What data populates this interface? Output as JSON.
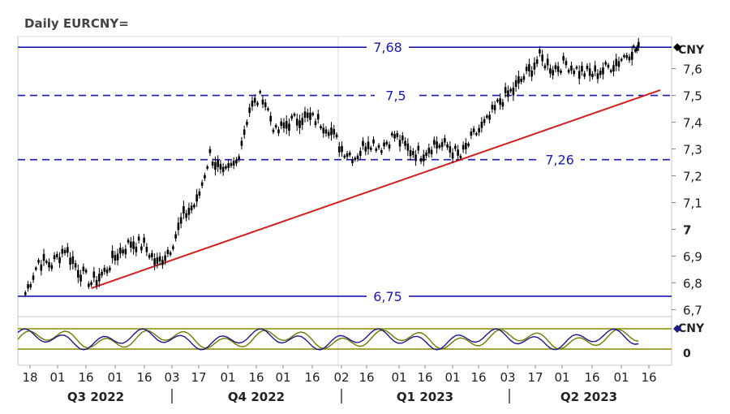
{
  "chart_data": [
    {
      "type": "line",
      "title": "Daily EURCNY=",
      "unit": "CNY",
      "ylim": [
        6.7,
        7.72
      ],
      "yticks": [
        "6,7",
        "6,8",
        "6,9",
        "7",
        "7,1",
        "7,2",
        "7,3",
        "7,4",
        "7,5",
        "7,6"
      ],
      "xticks": [
        "18",
        "01",
        "16",
        "01",
        "16",
        "03",
        "17",
        "01",
        "16",
        "01",
        "16",
        "02",
        "16",
        "01",
        "16",
        "01",
        "16",
        "03",
        "17",
        "01",
        "16",
        "01",
        "16"
      ],
      "quarters": [
        "Q3 2022",
        "Q4 2022",
        "Q1 2023",
        "Q2 2023"
      ],
      "x": [
        "2022-07-18",
        "2022-07-25",
        "2022-08-01",
        "2022-08-08",
        "2022-08-15",
        "2022-08-22",
        "2022-08-29",
        "2022-09-05",
        "2022-09-12",
        "2022-09-19",
        "2022-09-26",
        "2022-10-03",
        "2022-10-10",
        "2022-10-17",
        "2022-10-24",
        "2022-10-31",
        "2022-11-07",
        "2022-11-14",
        "2022-11-21",
        "2022-11-28",
        "2022-12-05",
        "2022-12-12",
        "2022-12-19",
        "2022-12-26",
        "2023-01-02",
        "2023-01-09",
        "2023-01-16",
        "2023-01-23",
        "2023-01-30",
        "2023-02-06",
        "2023-02-13",
        "2023-02-20",
        "2023-02-27",
        "2023-03-06",
        "2023-03-13",
        "2023-03-20",
        "2023-03-27",
        "2023-04-03",
        "2023-04-10",
        "2023-04-17",
        "2023-04-24",
        "2023-05-01",
        "2023-05-08",
        "2023-05-15",
        "2023-05-22",
        "2023-05-29",
        "2023-06-05"
      ],
      "series": [
        {
          "values": [
            6.76,
            6.88,
            6.87,
            6.93,
            6.85,
            6.8,
            6.84,
            6.91,
            6.95,
            6.94,
            6.87,
            6.93,
            7.05,
            7.1,
            7.28,
            7.2,
            7.25,
            7.45,
            7.5,
            7.36,
            7.4,
            7.42,
            7.41,
            7.38,
            7.3,
            7.27,
            7.33,
            7.31,
            7.35,
            7.3,
            7.28,
            7.32,
            7.31,
            7.27,
            7.35,
            7.4,
            7.48,
            7.52,
            7.58,
            7.64,
            7.6,
            7.62,
            7.59,
            7.58,
            7.6,
            7.63,
            7.67
          ],
          "color": "#000000"
        }
      ],
      "hlines": [
        {
          "value": 7.68,
          "label": "7,68",
          "style": "solid"
        },
        {
          "value": 7.5,
          "label": "7,5",
          "style": "dashed"
        },
        {
          "value": 7.26,
          "label": "7,26",
          "style": "dashed"
        },
        {
          "value": 6.75,
          "label": "6,75",
          "style": "solid"
        }
      ],
      "trendline": {
        "from": {
          "x": "2022-08-22",
          "y": 6.78
        },
        "to": {
          "x": "2023-06-20",
          "y": 7.52
        },
        "color": "#d22020"
      },
      "last_price_marker": "7,68",
      "grid": false
    },
    {
      "type": "line",
      "title": "",
      "unit": "CNY",
      "yticks": [
        "0"
      ],
      "note": "lower oscillator panel, two lines with two horizontal bands",
      "band_colors": [
        "#8c8c00",
        "#8c8c00"
      ],
      "series": [
        {
          "color": "#1a1a8c"
        },
        {
          "color": "#6e7a00"
        }
      ]
    }
  ]
}
